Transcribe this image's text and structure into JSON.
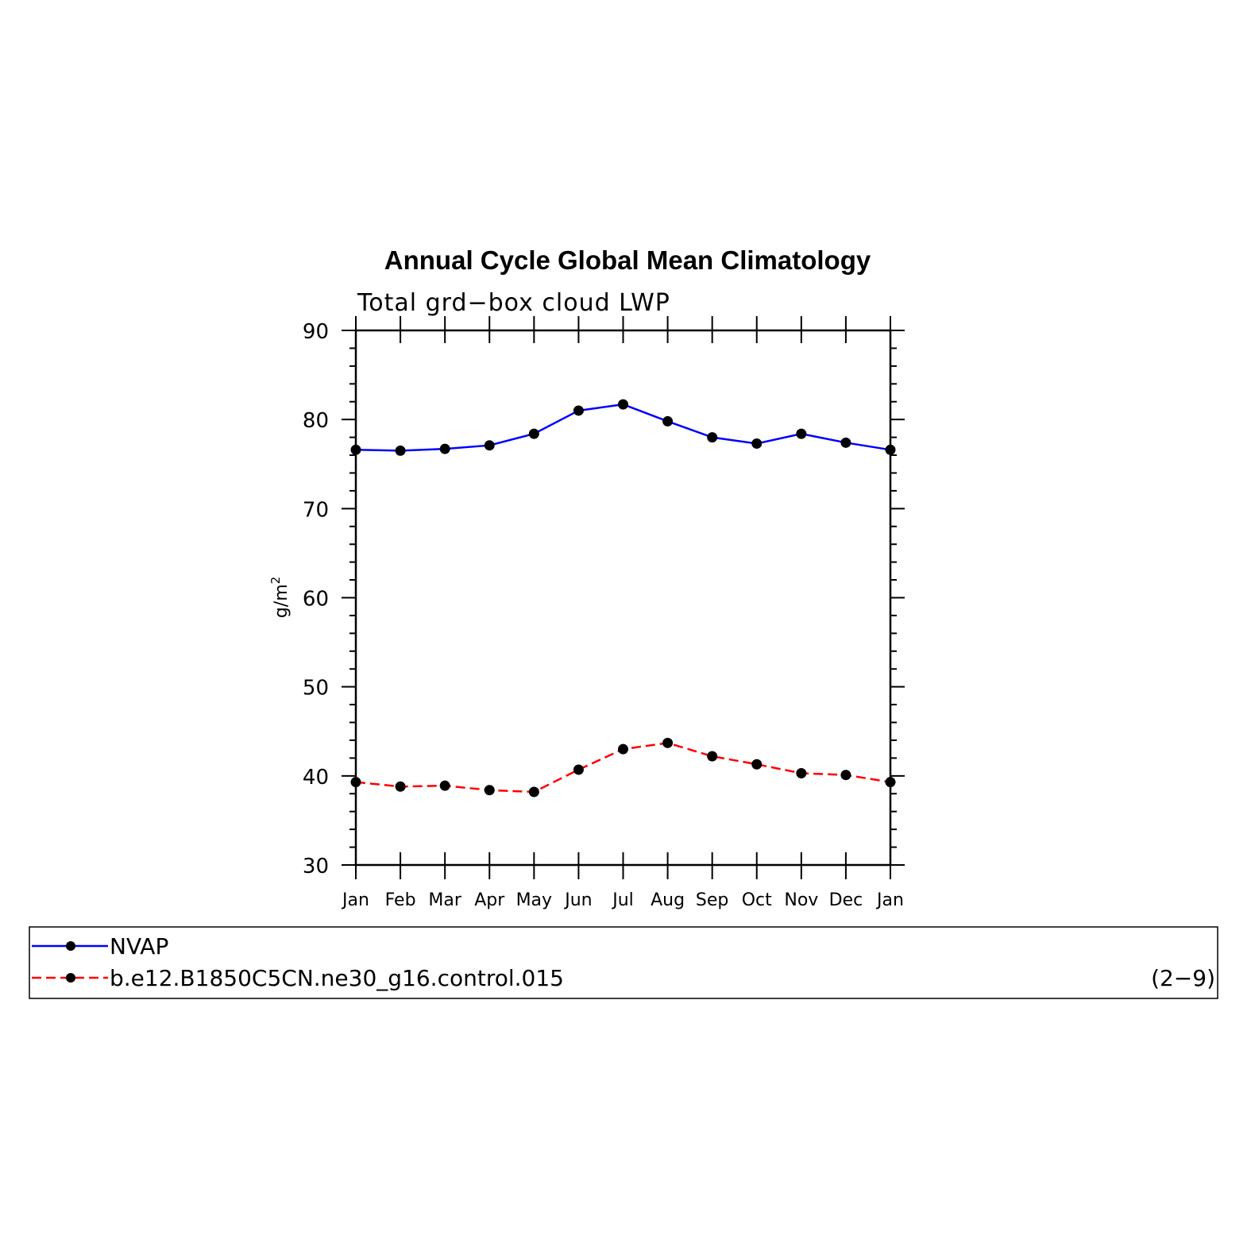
{
  "chart_data": {
    "type": "line",
    "title": "Annual Cycle Global Mean Climatology",
    "subtitle": "Total grd−box cloud LWP",
    "ylabel_base": "g/m",
    "ylabel_sup": "2",
    "ylim": [
      30,
      90
    ],
    "yticks": [
      30,
      40,
      50,
      60,
      70,
      80,
      90
    ],
    "categories": [
      "Jan",
      "Feb",
      "Mar",
      "Apr",
      "May",
      "Jun",
      "Jul",
      "Aug",
      "Sep",
      "Oct",
      "Nov",
      "Dec",
      "Jan"
    ],
    "series": [
      {
        "name": "NVAP",
        "color": "#0000ff",
        "dashed": false,
        "values": [
          76.6,
          76.5,
          76.7,
          77.1,
          78.4,
          81.0,
          81.7,
          79.8,
          78.0,
          77.3,
          78.4,
          77.4,
          76.6
        ]
      },
      {
        "name": "b.e12.B1850C5CN.ne30_g16.control.015",
        "color": "#ff0000",
        "dashed": true,
        "values": [
          39.3,
          38.8,
          38.9,
          38.4,
          38.2,
          40.7,
          43.0,
          43.7,
          42.2,
          41.3,
          40.3,
          40.1,
          39.3
        ]
      }
    ],
    "legend_note": "(2−9)"
  }
}
